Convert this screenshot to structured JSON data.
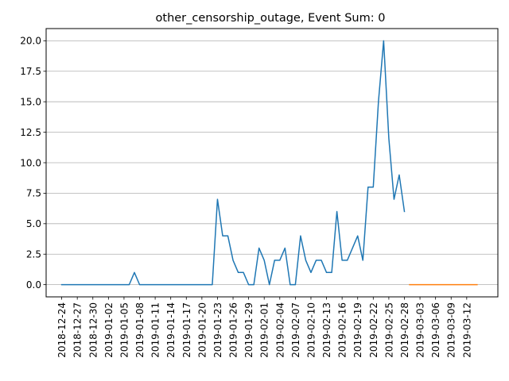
{
  "chart_data": {
    "type": "line",
    "title": "other_censorship_outage, Event Sum: 0",
    "xlabel": "",
    "ylabel": "",
    "ylim": [
      -1.0,
      21.0
    ],
    "y_ticks": [
      0.0,
      2.5,
      5.0,
      7.5,
      10.0,
      12.5,
      15.0,
      17.5,
      20.0
    ],
    "y_tick_labels": [
      "0.0",
      "2.5",
      "5.0",
      "7.5",
      "10.0",
      "12.5",
      "15.0",
      "17.5",
      "20.0"
    ],
    "xlim": [
      "2018-12-21",
      "2019-03-18"
    ],
    "x_ticks": [
      "2018-12-24",
      "2018-12-27",
      "2018-12-30",
      "2019-01-02",
      "2019-01-05",
      "2019-01-08",
      "2019-01-11",
      "2019-01-14",
      "2019-01-17",
      "2019-01-20",
      "2019-01-23",
      "2019-01-26",
      "2019-01-29",
      "2019-02-01",
      "2019-02-04",
      "2019-02-07",
      "2019-02-10",
      "2019-02-13",
      "2019-02-16",
      "2019-02-19",
      "2019-02-22",
      "2019-02-25",
      "2019-02-28",
      "2019-03-03",
      "2019-03-06",
      "2019-03-09",
      "2019-03-12"
    ],
    "grid": "horizontal",
    "series": [
      {
        "color": "#1f77b4",
        "x": [
          "2018-12-24",
          "2018-12-25",
          "2018-12-26",
          "2018-12-27",
          "2018-12-28",
          "2018-12-29",
          "2018-12-30",
          "2018-12-31",
          "2019-01-01",
          "2019-01-02",
          "2019-01-03",
          "2019-01-04",
          "2019-01-05",
          "2019-01-06",
          "2019-01-07",
          "2019-01-08",
          "2019-01-09",
          "2019-01-10",
          "2019-01-11",
          "2019-01-12",
          "2019-01-13",
          "2019-01-14",
          "2019-01-15",
          "2019-01-16",
          "2019-01-17",
          "2019-01-18",
          "2019-01-19",
          "2019-01-20",
          "2019-01-21",
          "2019-01-22",
          "2019-01-23",
          "2019-01-24",
          "2019-01-25",
          "2019-01-26",
          "2019-01-27",
          "2019-01-28",
          "2019-01-29",
          "2019-01-30",
          "2019-01-31",
          "2019-02-01",
          "2019-02-02",
          "2019-02-03",
          "2019-02-04",
          "2019-02-05",
          "2019-02-06",
          "2019-02-07",
          "2019-02-08",
          "2019-02-09",
          "2019-02-10",
          "2019-02-11",
          "2019-02-12",
          "2019-02-13",
          "2019-02-14",
          "2019-02-15",
          "2019-02-16",
          "2019-02-17",
          "2019-02-18",
          "2019-02-19",
          "2019-02-20",
          "2019-02-21",
          "2019-02-22",
          "2019-02-23",
          "2019-02-24",
          "2019-02-25",
          "2019-02-26",
          "2019-02-27",
          "2019-02-28"
        ],
        "values": [
          0,
          0,
          0,
          0,
          0,
          0,
          0,
          0,
          0,
          0,
          0,
          0,
          0,
          0,
          1,
          0,
          0,
          0,
          0,
          0,
          0,
          0,
          0,
          0,
          0,
          0,
          0,
          0,
          0,
          0,
          7,
          4,
          4,
          2,
          1,
          1,
          0,
          0,
          3,
          2,
          0,
          2,
          2,
          3,
          0,
          0,
          4,
          2,
          1,
          2,
          2,
          1,
          1,
          6,
          2,
          2,
          3,
          4,
          2,
          8,
          8,
          15,
          20,
          12,
          7,
          9,
          6
        ]
      },
      {
        "color": "#ff7f0e",
        "x": [
          "2019-03-01",
          "2019-03-02",
          "2019-03-03",
          "2019-03-04",
          "2019-03-05",
          "2019-03-06",
          "2019-03-07",
          "2019-03-08",
          "2019-03-09",
          "2019-03-10",
          "2019-03-11",
          "2019-03-12",
          "2019-03-13",
          "2019-03-14"
        ],
        "values": [
          0,
          0,
          0,
          0,
          0,
          0,
          0,
          0,
          0,
          0,
          0,
          0,
          0,
          0
        ]
      }
    ]
  }
}
